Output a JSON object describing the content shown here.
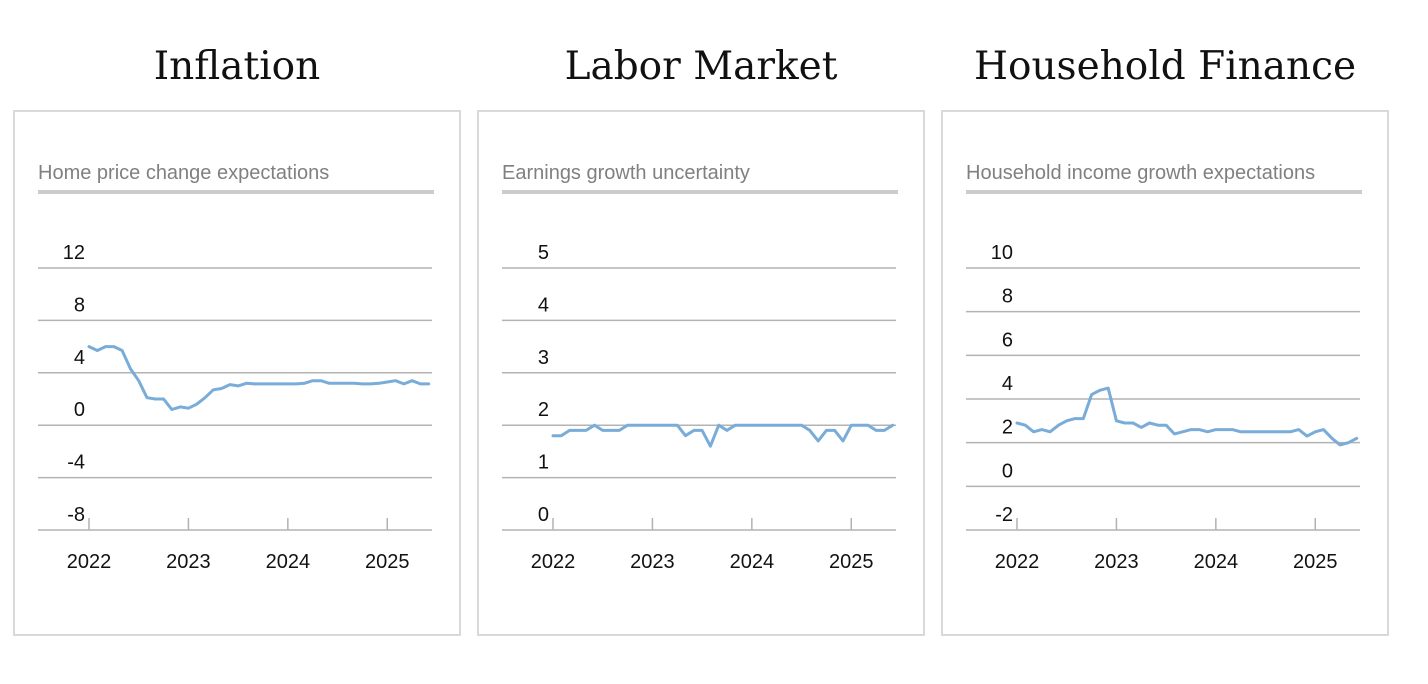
{
  "colors": {
    "line": "#79acd9",
    "grid": "#b3b3b3",
    "panel_border": "#d9d9d9",
    "subtitle": "#808080",
    "rule": "#cccccc"
  },
  "panels": [
    {
      "title": "Inflation",
      "subtitle": "Home price change expectations"
    },
    {
      "title": "Labor Market",
      "subtitle": "Earnings growth uncertainty"
    },
    {
      "title": "Household Finance",
      "subtitle": "Household income growth expectations"
    }
  ],
  "chart_data": [
    {
      "type": "line",
      "title": "Home price change expectations",
      "ylim": [
        -8,
        12
      ],
      "yticks": [
        12,
        8,
        4,
        0,
        -4,
        -8
      ],
      "ytick_labels": [
        "12",
        "8",
        "4",
        "0",
        "-4",
        "-8"
      ],
      "xlim": [
        2022.0,
        2025.45
      ],
      "xticks": [
        2022,
        2023,
        2024,
        2025
      ],
      "xtick_labels": [
        "2022",
        "2023",
        "2024",
        "2025"
      ],
      "grid": true,
      "series": [
        {
          "x": [
            2022.0,
            2022.083,
            2022.167,
            2022.25,
            2022.333,
            2022.417,
            2022.5,
            2022.583,
            2022.667,
            2022.75,
            2022.833,
            2022.917,
            2023.0,
            2023.083,
            2023.167,
            2023.25,
            2023.333,
            2023.417,
            2023.5,
            2023.583,
            2023.667,
            2023.75,
            2023.833,
            2023.917,
            2024.0,
            2024.083,
            2024.167,
            2024.25,
            2024.333,
            2024.417,
            2024.5,
            2024.583,
            2024.667,
            2024.75,
            2024.833,
            2024.917,
            2025.0,
            2025.083,
            2025.167,
            2025.25,
            2025.333,
            2025.417
          ],
          "values": [
            6.0,
            5.7,
            6.0,
            6.0,
            5.7,
            4.3,
            3.4,
            2.1,
            2.0,
            2.0,
            1.2,
            1.4,
            1.3,
            1.6,
            2.1,
            2.7,
            2.8,
            3.1,
            3.0,
            3.2,
            3.15,
            3.15,
            3.15,
            3.15,
            3.15,
            3.15,
            3.2,
            3.4,
            3.4,
            3.2,
            3.2,
            3.2,
            3.2,
            3.15,
            3.15,
            3.2,
            3.3,
            3.4,
            3.15,
            3.4,
            3.15,
            3.15
          ]
        }
      ]
    },
    {
      "type": "line",
      "title": "Earnings growth uncertainty",
      "ylim": [
        0,
        5
      ],
      "yticks": [
        5,
        4,
        3,
        2,
        1,
        0
      ],
      "ytick_labels": [
        "5",
        "4",
        "3",
        "2",
        "1",
        "0"
      ],
      "xlim": [
        2022.0,
        2025.45
      ],
      "xticks": [
        2022,
        2023,
        2024,
        2025
      ],
      "xtick_labels": [
        "2022",
        "2023",
        "2024",
        "2025"
      ],
      "grid": true,
      "series": [
        {
          "x": [
            2022.0,
            2022.083,
            2022.167,
            2022.25,
            2022.333,
            2022.417,
            2022.5,
            2022.583,
            2022.667,
            2022.75,
            2022.833,
            2022.917,
            2023.0,
            2023.083,
            2023.167,
            2023.25,
            2023.333,
            2023.417,
            2023.5,
            2023.583,
            2023.667,
            2023.75,
            2023.833,
            2023.917,
            2024.0,
            2024.083,
            2024.167,
            2024.25,
            2024.333,
            2024.417,
            2024.5,
            2024.583,
            2024.667,
            2024.75,
            2024.833,
            2024.917,
            2025.0,
            2025.083,
            2025.167,
            2025.25,
            2025.333,
            2025.417
          ],
          "values": [
            1.8,
            1.8,
            1.9,
            1.9,
            1.9,
            2.0,
            1.9,
            1.9,
            1.9,
            2.0,
            2.0,
            2.0,
            2.0,
            2.0,
            2.0,
            2.0,
            1.8,
            1.9,
            1.9,
            1.6,
            2.0,
            1.9,
            2.0,
            2.0,
            2.0,
            2.0,
            2.0,
            2.0,
            2.0,
            2.0,
            2.0,
            1.9,
            1.7,
            1.9,
            1.9,
            1.7,
            2.0,
            2.0,
            2.0,
            1.9,
            1.9,
            2.0
          ]
        }
      ]
    },
    {
      "type": "line",
      "title": "Household income growth expectations",
      "ylim": [
        -2,
        10
      ],
      "yticks": [
        10,
        8,
        6,
        4,
        2,
        0,
        -2
      ],
      "ytick_labels": [
        "10",
        "8",
        "6",
        "4",
        "2",
        "0",
        "-2"
      ],
      "xlim": [
        2022.0,
        2025.45
      ],
      "xticks": [
        2022,
        2023,
        2024,
        2025
      ],
      "xtick_labels": [
        "2022",
        "2023",
        "2024",
        "2025"
      ],
      "grid": true,
      "series": [
        {
          "x": [
            2022.0,
            2022.083,
            2022.167,
            2022.25,
            2022.333,
            2022.417,
            2022.5,
            2022.583,
            2022.667,
            2022.75,
            2022.833,
            2022.917,
            2023.0,
            2023.083,
            2023.167,
            2023.25,
            2023.333,
            2023.417,
            2023.5,
            2023.583,
            2023.667,
            2023.75,
            2023.833,
            2023.917,
            2024.0,
            2024.083,
            2024.167,
            2024.25,
            2024.333,
            2024.417,
            2024.5,
            2024.583,
            2024.667,
            2024.75,
            2024.833,
            2024.917,
            2025.0,
            2025.083,
            2025.167,
            2025.25,
            2025.333,
            2025.417
          ],
          "values": [
            2.9,
            2.8,
            2.5,
            2.6,
            2.5,
            2.8,
            3.0,
            3.1,
            3.1,
            4.2,
            4.4,
            4.5,
            3.0,
            2.9,
            2.9,
            2.7,
            2.9,
            2.8,
            2.8,
            2.4,
            2.5,
            2.6,
            2.6,
            2.5,
            2.6,
            2.6,
            2.6,
            2.5,
            2.5,
            2.5,
            2.5,
            2.5,
            2.5,
            2.5,
            2.6,
            2.3,
            2.5,
            2.6,
            2.2,
            1.9,
            2.0,
            2.2
          ]
        }
      ]
    }
  ]
}
